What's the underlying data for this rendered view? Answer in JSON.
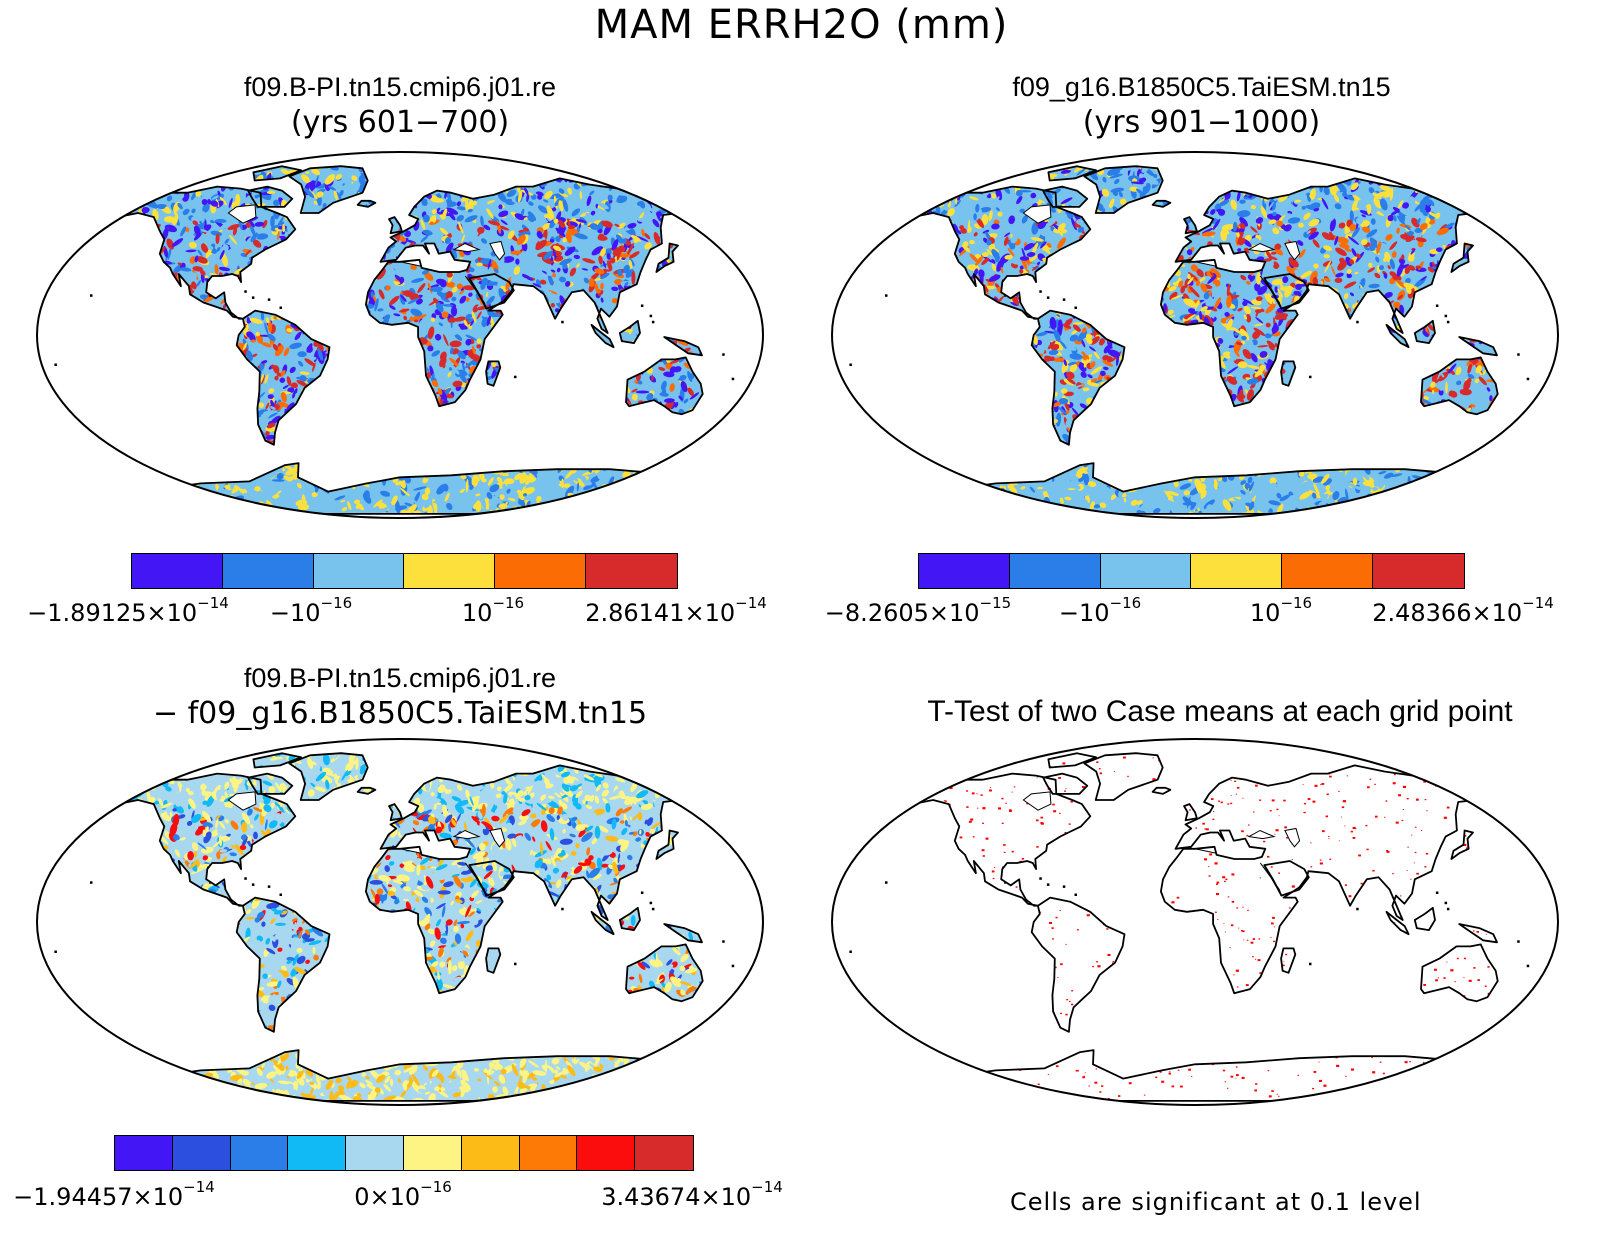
{
  "main_title": "MAM ERRH2O (mm)",
  "panels": [
    {
      "title_line1": "f09.B-PI.tn15.cmip6.j01.re",
      "title_line2": "(yrs 601−700)",
      "colorbar": {
        "colors": [
          "#4316f5",
          "#2b7ee8",
          "#77c3ee",
          "#fde03c",
          "#fc6c05",
          "#d72b2b"
        ],
        "labels": [
          "−1.89125×10",
          "−10",
          "10",
          "2.86141×10"
        ],
        "label_exponents": [
          "−14",
          "−16",
          "−16",
          "−14"
        ]
      }
    },
    {
      "title_line1": "f09_g16.B1850C5.TaiESM.tn15",
      "title_line2": "(yrs 901−1000)",
      "colorbar": {
        "colors": [
          "#4316f5",
          "#2b7ee8",
          "#77c3ee",
          "#fde03c",
          "#fc6c05",
          "#d72b2b"
        ],
        "labels": [
          "−8.2605×10",
          "−10",
          "10",
          "2.48366×10"
        ],
        "label_exponents": [
          "−15",
          "−16",
          "−16",
          "−14"
        ]
      }
    },
    {
      "title_line1": "f09.B-PI.tn15.cmip6.j01.re",
      "title_line2": "− f09_g16.B1850C5.TaiESM.tn15",
      "colorbar": {
        "colors": [
          "#4316f5",
          "#2c4fe0",
          "#2b7ee8",
          "#11b9f5",
          "#a8d8f0",
          "#fdf484",
          "#fdbb17",
          "#fc7a05",
          "#fb0d0d",
          "#d72b2b"
        ],
        "labels": [
          "−1.94457×10",
          "0×10",
          "3.43674×10"
        ],
        "label_exponents": [
          "−14",
          "−16",
          "−14"
        ]
      }
    }
  ],
  "ttest": {
    "title": "T-Test of two Case means at each grid point",
    "note": "Cells are significant at 0.1 level",
    "sig_color": "#ff0000"
  }
}
